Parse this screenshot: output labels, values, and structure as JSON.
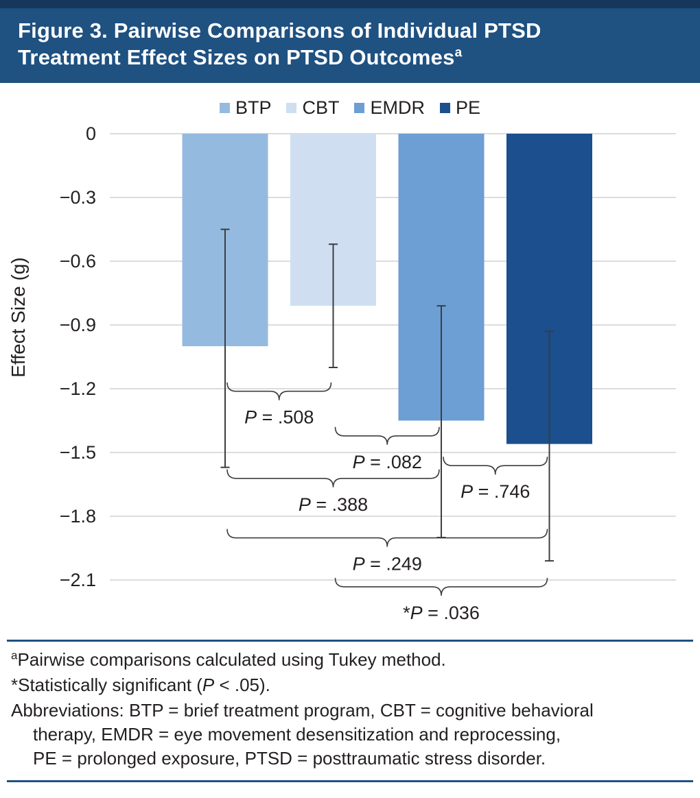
{
  "header": {
    "title_line1": "Figure 3. Pairwise Comparisons of Individual PTSD",
    "title_line2": "Treatment Effect Sizes on PTSD Outcomes",
    "title_superscript": "a"
  },
  "chart_data": {
    "type": "bar",
    "title": "Pairwise Comparisons of Individual PTSD Treatment Effect Sizes on PTSD Outcomes",
    "xlabel": "",
    "ylabel": "Effect Size (g)",
    "categories": [
      "BTP",
      "CBT",
      "EMDR",
      "PE"
    ],
    "values": [
      -1.0,
      -0.81,
      -1.35,
      -1.46
    ],
    "error_bars": [
      {
        "high": -0.45,
        "low": -1.57
      },
      {
        "high": -0.52,
        "low": -1.1
      },
      {
        "high": -0.81,
        "low": -1.9
      },
      {
        "high": -0.93,
        "low": -2.01
      }
    ],
    "colors": [
      "#95badf",
      "#cfdff1",
      "#6d9ed4",
      "#1b4f8e"
    ],
    "ylim": [
      -2.1,
      0
    ],
    "yticks": [
      0,
      -0.3,
      -0.6,
      -0.9,
      -1.2,
      -1.5,
      -1.8,
      -2.1
    ],
    "ytick_labels": [
      "0",
      "−0.3",
      "−0.6",
      "−0.9",
      "−1.2",
      "−1.5",
      "−1.8",
      "−2.1"
    ],
    "grid": true,
    "legend_position": "top center",
    "comparisons": [
      {
        "pair": [
          0,
          1
        ],
        "label": "P = .508",
        "brace_g": -1.17
      },
      {
        "pair": [
          1,
          2
        ],
        "label": "P = .082",
        "brace_g": -1.38
      },
      {
        "pair": [
          0,
          2
        ],
        "label": "P = .388",
        "brace_g": -1.58
      },
      {
        "pair": [
          2,
          3
        ],
        "label": "P = .746",
        "brace_g": -1.52
      },
      {
        "pair": [
          0,
          3
        ],
        "label": "P = .249",
        "brace_g": -1.86
      },
      {
        "pair": [
          1,
          3
        ],
        "label": "*P = .036",
        "brace_g": -2.09
      }
    ],
    "style": {
      "grid_color": "#c6c8ca",
      "error_color": "#3d3d3d",
      "text_color": "#231f20"
    }
  },
  "footnotes": {
    "note_a_sup": "a",
    "note_a_text": "Pairwise comparisons calculated using Tukey method.",
    "note_star_pre": "*Statistically significant (",
    "note_star_p": "P",
    "note_star_post": " < .05).",
    "abbrev_line1": "Abbreviations: BTP = brief treatment program, CBT = cognitive behavioral",
    "abbrev_line2": "therapy, EMDR = eye movement desensitization and reprocessing,",
    "abbrev_line3": "PE = prolonged exposure, PTSD = posttraumatic stress disorder."
  }
}
